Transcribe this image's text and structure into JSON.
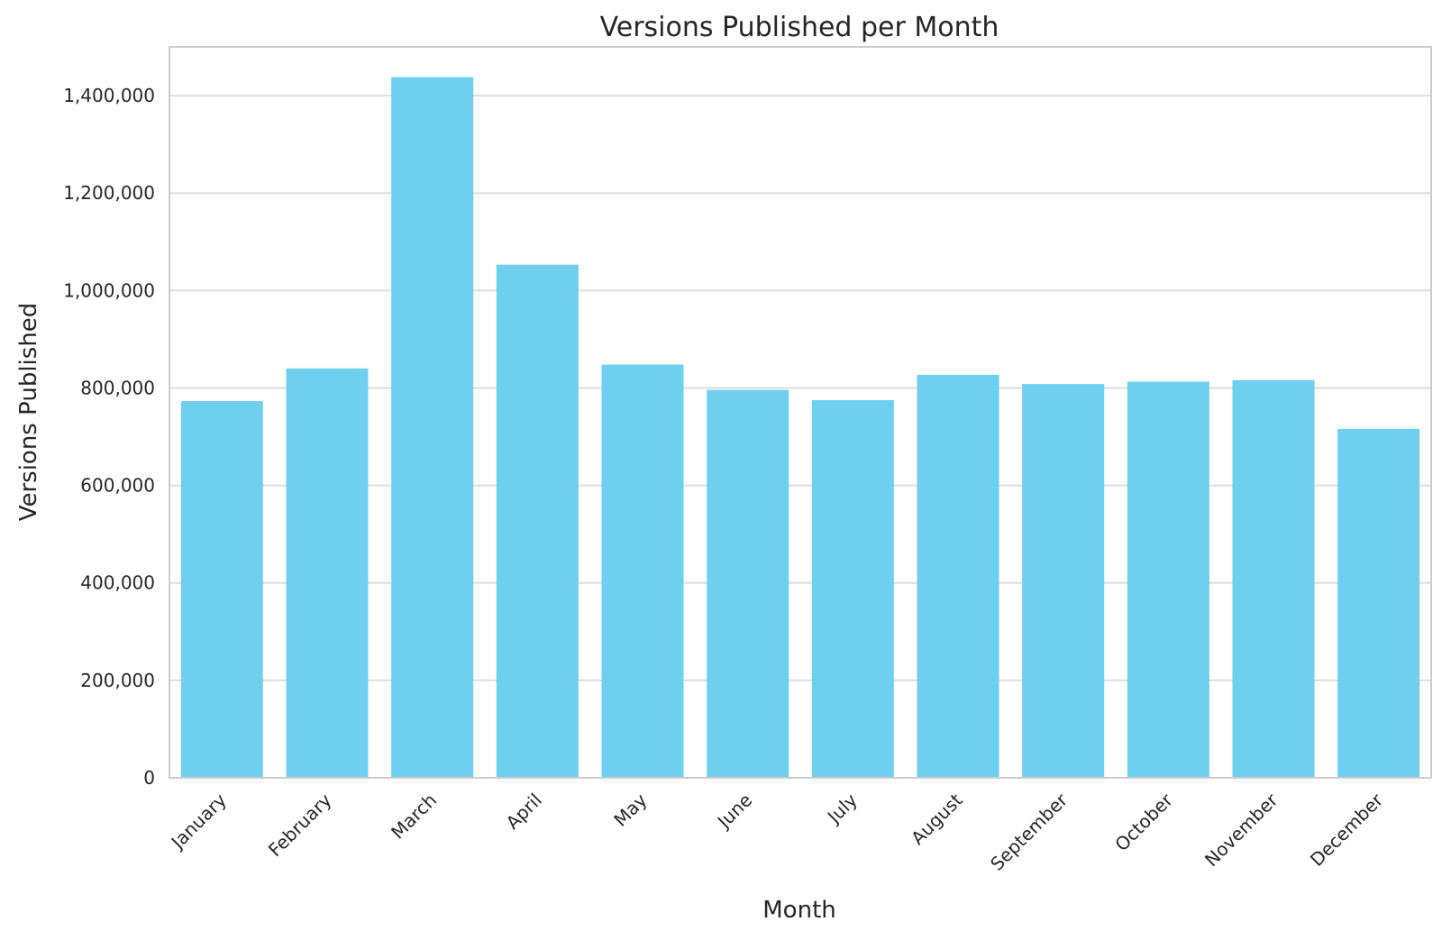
{
  "chart_data": {
    "type": "bar",
    "title": "Versions Published per Month",
    "xlabel": "Month",
    "ylabel": "Versions Published",
    "categories": [
      "January",
      "February",
      "March",
      "April",
      "May",
      "June",
      "July",
      "August",
      "September",
      "October",
      "November",
      "December"
    ],
    "values": [
      773000,
      840000,
      1438000,
      1053000,
      848000,
      796000,
      775000,
      827000,
      808000,
      813000,
      816000,
      716000
    ],
    "ylim": [
      0,
      1500000
    ],
    "yticks": [
      0,
      200000,
      400000,
      600000,
      800000,
      1000000,
      1200000,
      1400000
    ],
    "ytick_labels": [
      "0",
      "200,000",
      "400,000",
      "600,000",
      "800,000",
      "1,000,000",
      "1,200,000",
      "1,400,000"
    ],
    "bar_color": "#6ecfee",
    "grid": "horizontal",
    "grid_color": "#dddddd",
    "spine_color": "#cccccc",
    "legend": "none"
  }
}
